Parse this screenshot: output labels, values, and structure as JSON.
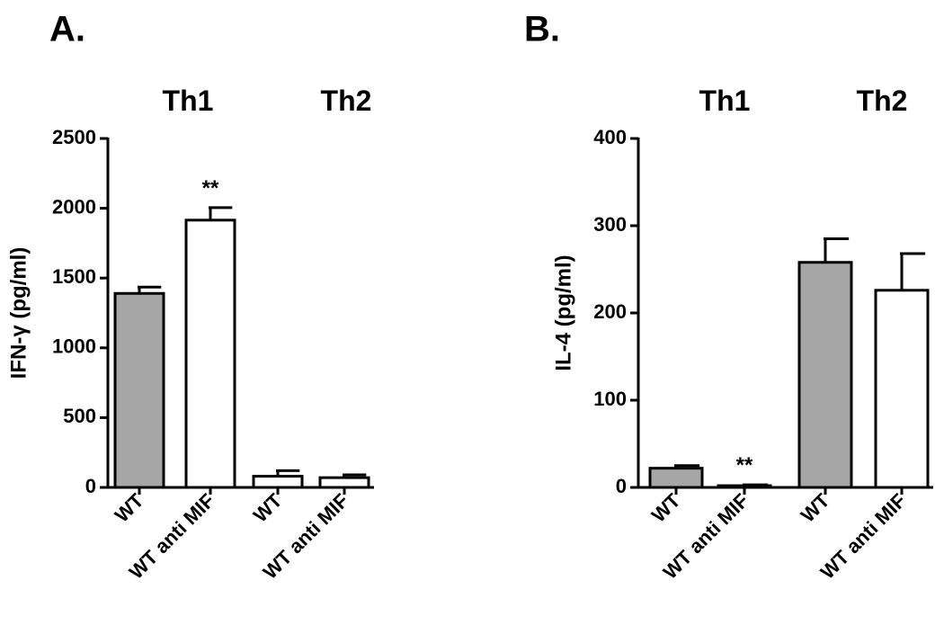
{
  "colors": {
    "filled_bar": "#a6a6a6",
    "open_bar": "#ffffff",
    "stroke": "#000000"
  },
  "chart_data": [
    {
      "type": "bar",
      "panel_label": "A.",
      "ylabel": "IFN-γ (pg/ml)",
      "ylim": [
        0,
        2500
      ],
      "yticks": [
        0,
        500,
        1000,
        1500,
        2000,
        2500
      ],
      "groups": [
        {
          "label": "Th1"
        },
        {
          "label": "Th2"
        }
      ],
      "categories": [
        "WT",
        "WT anti MIF",
        "WT",
        "WT anti MIF"
      ],
      "values": [
        1390,
        1915,
        80,
        70
      ],
      "errors": [
        45,
        90,
        40,
        20
      ],
      "fills": [
        "filled",
        "open",
        "open",
        "open"
      ],
      "annotations": [
        "",
        "**",
        "",
        ""
      ]
    },
    {
      "type": "bar",
      "panel_label": "B.",
      "ylabel": "IL-4 (pg/ml)",
      "ylim": [
        0,
        400
      ],
      "yticks": [
        0,
        100,
        200,
        300,
        400
      ],
      "groups": [
        {
          "label": "Th1"
        },
        {
          "label": "Th2"
        }
      ],
      "categories": [
        "WT",
        "WT anti MIF",
        "WT",
        "WT anti MIF"
      ],
      "values": [
        22,
        2,
        258,
        226
      ],
      "errors": [
        3,
        1,
        27,
        42
      ],
      "fills": [
        "filled",
        "open",
        "filled",
        "open"
      ],
      "annotations": [
        "",
        "**",
        "",
        ""
      ]
    }
  ]
}
